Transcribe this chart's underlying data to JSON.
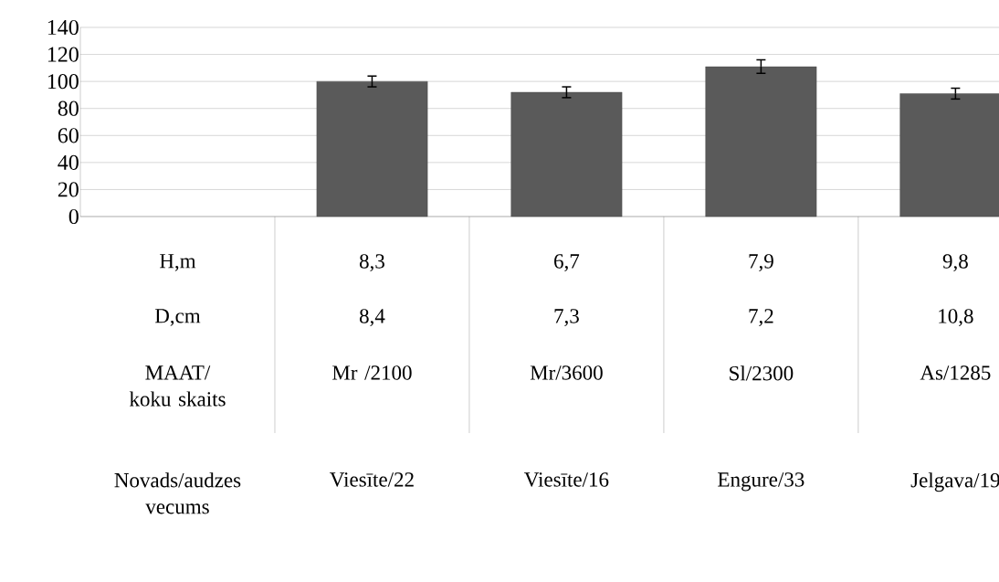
{
  "chart_data": {
    "type": "bar",
    "categories": [
      null,
      null,
      null,
      null,
      null
    ],
    "values": [
      null,
      100,
      92,
      111,
      91
    ],
    "errors": [
      null,
      4,
      4,
      5,
      4
    ],
    "color": "#5a5a5a",
    "ylim": [
      0,
      140
    ],
    "yticks": [
      0,
      20,
      40,
      60,
      80,
      100,
      120,
      140
    ],
    "grid": "y",
    "annotations": [
      "H,m",
      "8,3",
      "6,7",
      "7,9",
      "9,8",
      "D,cm",
      "8,4",
      "7,3",
      "7,2",
      "10,8",
      "MAAT/ koku skaits",
      "Mr /2100",
      "Mr/3600",
      "Sl/2300",
      "As/1285",
      "Novads/audzes vecums",
      "Viesīte/22",
      "Viesīte/16",
      "Engure/33",
      "Jelgava/19"
    ]
  }
}
